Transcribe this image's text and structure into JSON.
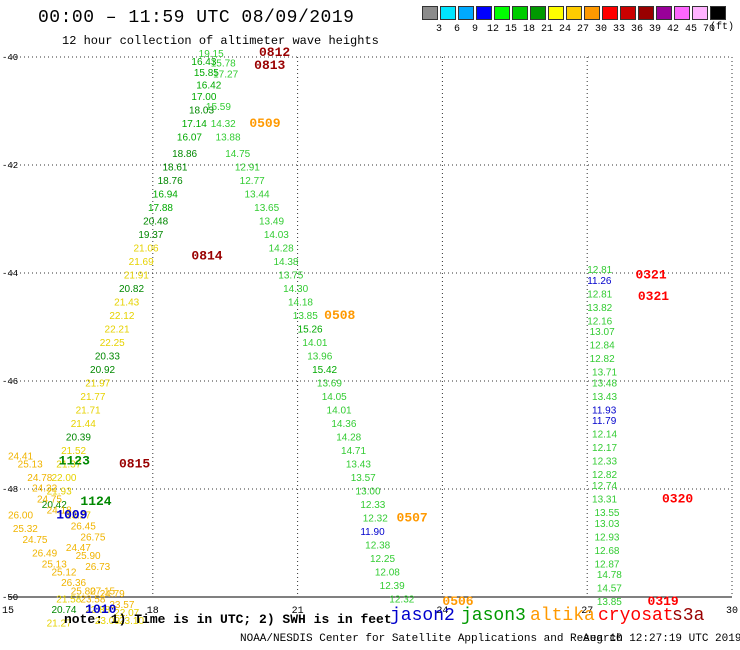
{
  "title": "00:00 – 11:59 UTC 08/09/2019",
  "subtitle": "12 hour collection of altimeter wave heights",
  "scale": {
    "labels": [
      "3",
      "6",
      "9",
      "12",
      "15",
      "18",
      "21",
      "24",
      "27",
      "30",
      "33",
      "36",
      "39",
      "42",
      "45",
      "70"
    ],
    "unit": "(ft)",
    "colors": [
      "#8c8c8c",
      "#00e5ff",
      "#00aaff",
      "#0000ff",
      "#00ff00",
      "#00cc00",
      "#009900",
      "#ffff00",
      "#ffcc00",
      "#ff9900",
      "#ff0000",
      "#cc0000",
      "#990000",
      "#990099",
      "#ff66ff",
      "#ffb3ff",
      "#000000"
    ]
  },
  "note": "note: 1) Time is in UTC; 2) SWH is in feet",
  "satellites": [
    {
      "name": "jason2",
      "color": "#0000cc"
    },
    {
      "name": "jason3",
      "color": "#009900"
    },
    {
      "name": "altika",
      "color": "#ff9900"
    },
    {
      "name": "cryosat",
      "color": "#ff0000"
    },
    {
      "name": "s3a",
      "color": "#990000"
    }
  ],
  "footer": "NOAA/NESDIS Center for Satellite Applications and Research",
  "footer_timestamp": "Aug 10 12:27:19 UTC 2019",
  "colors": {
    "green_dark": "#008800",
    "green_mid": "#00aa00",
    "green_light": "#33cc33",
    "yellow": "#e6d200",
    "gold": "#f0b400",
    "orange": "#ff9900",
    "red": "#ff0000",
    "maroon": "#990000",
    "blue": "#0000cc"
  },
  "chart_data": {
    "type": "scatter",
    "xlabel": "",
    "ylabel": "",
    "xlim": [
      15,
      30
    ],
    "ylim": [
      -50,
      -40
    ],
    "x_ticks": [
      "15",
      "18",
      "21",
      "24",
      "27",
      "30"
    ],
    "y_ticks": [
      "-40",
      "-42",
      "-44",
      "-46",
      "-48",
      "-50"
    ],
    "grid": true,
    "points": [
      {
        "x": 18.95,
        "y": -40.0,
        "label": "19.15",
        "c": "green_light"
      },
      {
        "x": 18.8,
        "y": -40.15,
        "label": "16.43",
        "c": "green_mid"
      },
      {
        "x": 19.2,
        "y": -40.18,
        "label": "15.78",
        "c": "green_light"
      },
      {
        "x": 18.85,
        "y": -40.35,
        "label": "15.85",
        "c": "green_mid"
      },
      {
        "x": 19.25,
        "y": -40.38,
        "label": "17.27",
        "c": "green_light"
      },
      {
        "x": 18.9,
        "y": -40.58,
        "label": "16.42",
        "c": "green_mid"
      },
      {
        "x": 18.8,
        "y": -40.8,
        "label": "17.00",
        "c": "green_mid"
      },
      {
        "x": 19.1,
        "y": -40.98,
        "label": "15.59",
        "c": "green_light"
      },
      {
        "x": 18.75,
        "y": -41.05,
        "label": "18.03",
        "c": "green_dark"
      },
      {
        "x": 18.6,
        "y": -41.3,
        "label": "17.14",
        "c": "green_mid"
      },
      {
        "x": 19.2,
        "y": -41.3,
        "label": "14.32",
        "c": "green_light"
      },
      {
        "x": 18.5,
        "y": -41.55,
        "label": "16.07",
        "c": "green_mid"
      },
      {
        "x": 19.3,
        "y": -41.55,
        "label": "13.88",
        "c": "green_light"
      },
      {
        "x": 18.4,
        "y": -41.85,
        "label": "18.86",
        "c": "green_dark"
      },
      {
        "x": 19.5,
        "y": -41.85,
        "label": "14.75",
        "c": "green_light"
      },
      {
        "x": 18.2,
        "y": -42.1,
        "label": "18.61",
        "c": "green_dark"
      },
      {
        "x": 19.7,
        "y": -42.1,
        "label": "12.91",
        "c": "green_light"
      },
      {
        "x": 18.1,
        "y": -42.35,
        "label": "18.76",
        "c": "green_dark"
      },
      {
        "x": 19.8,
        "y": -42.35,
        "label": "12.77",
        "c": "green_light"
      },
      {
        "x": 18.0,
        "y": -42.6,
        "label": "16.94",
        "c": "green_mid"
      },
      {
        "x": 19.9,
        "y": -42.6,
        "label": "13.44",
        "c": "green_light"
      },
      {
        "x": 17.9,
        "y": -42.85,
        "label": "17.88",
        "c": "green_mid"
      },
      {
        "x": 20.1,
        "y": -42.85,
        "label": "13.65",
        "c": "green_light"
      },
      {
        "x": 17.8,
        "y": -43.1,
        "label": "20.48",
        "c": "green_dark"
      },
      {
        "x": 20.2,
        "y": -43.1,
        "label": "13.49",
        "c": "green_light"
      },
      {
        "x": 17.7,
        "y": -43.35,
        "label": "19.37",
        "c": "green_dark"
      },
      {
        "x": 20.3,
        "y": -43.35,
        "label": "14.03",
        "c": "green_light"
      },
      {
        "x": 17.6,
        "y": -43.6,
        "label": "21.06",
        "c": "yellow"
      },
      {
        "x": 20.4,
        "y": -43.6,
        "label": "14.28",
        "c": "green_light"
      },
      {
        "x": 17.5,
        "y": -43.85,
        "label": "21.69",
        "c": "yellow"
      },
      {
        "x": 20.5,
        "y": -43.85,
        "label": "14.38",
        "c": "green_light"
      },
      {
        "x": 17.4,
        "y": -44.1,
        "label": "21.91",
        "c": "yellow"
      },
      {
        "x": 20.6,
        "y": -44.1,
        "label": "13.75",
        "c": "green_light"
      },
      {
        "x": 17.3,
        "y": -44.35,
        "label": "20.82",
        "c": "green_dark"
      },
      {
        "x": 20.7,
        "y": -44.35,
        "label": "14.30",
        "c": "green_light"
      },
      {
        "x": 17.2,
        "y": -44.6,
        "label": "21.43",
        "c": "yellow"
      },
      {
        "x": 20.8,
        "y": -44.6,
        "label": "14.18",
        "c": "green_light"
      },
      {
        "x": 17.1,
        "y": -44.85,
        "label": "22.12",
        "c": "yellow"
      },
      {
        "x": 20.9,
        "y": -44.85,
        "label": "13.85",
        "c": "green_light"
      },
      {
        "x": 17.0,
        "y": -45.1,
        "label": "22.21",
        "c": "yellow"
      },
      {
        "x": 21.0,
        "y": -45.1,
        "label": "15.26",
        "c": "green_mid"
      },
      {
        "x": 16.9,
        "y": -45.35,
        "label": "22.25",
        "c": "yellow"
      },
      {
        "x": 21.1,
        "y": -45.35,
        "label": "14.01",
        "c": "green_light"
      },
      {
        "x": 16.8,
        "y": -45.6,
        "label": "20.33",
        "c": "green_dark"
      },
      {
        "x": 21.2,
        "y": -45.6,
        "label": "13.96",
        "c": "green_light"
      },
      {
        "x": 16.7,
        "y": -45.85,
        "label": "20.92",
        "c": "green_dark"
      },
      {
        "x": 21.3,
        "y": -45.85,
        "label": "15.42",
        "c": "green_mid"
      },
      {
        "x": 16.6,
        "y": -46.1,
        "label": "21.97",
        "c": "yellow"
      },
      {
        "x": 21.4,
        "y": -46.1,
        "label": "13.69",
        "c": "green_light"
      },
      {
        "x": 16.5,
        "y": -46.35,
        "label": "21.77",
        "c": "yellow"
      },
      {
        "x": 21.5,
        "y": -46.35,
        "label": "14.05",
        "c": "green_light"
      },
      {
        "x": 16.4,
        "y": -46.6,
        "label": "21.71",
        "c": "yellow"
      },
      {
        "x": 21.6,
        "y": -46.6,
        "label": "14.01",
        "c": "green_light"
      },
      {
        "x": 16.3,
        "y": -46.85,
        "label": "21.44",
        "c": "yellow"
      },
      {
        "x": 21.7,
        "y": -46.85,
        "label": "14.36",
        "c": "green_light"
      },
      {
        "x": 16.2,
        "y": -47.1,
        "label": "20.39",
        "c": "green_dark"
      },
      {
        "x": 21.8,
        "y": -47.1,
        "label": "14.28",
        "c": "green_light"
      },
      {
        "x": 16.1,
        "y": -47.35,
        "label": "21.52",
        "c": "yellow"
      },
      {
        "x": 21.9,
        "y": -47.35,
        "label": "14.71",
        "c": "green_light"
      },
      {
        "x": 16.0,
        "y": -47.6,
        "label": "21.37",
        "c": "yellow"
      },
      {
        "x": 22.0,
        "y": -47.6,
        "label": "13.43",
        "c": "green_light"
      },
      {
        "x": 15.9,
        "y": -47.85,
        "label": "22.00",
        "c": "yellow"
      },
      {
        "x": 22.1,
        "y": -47.85,
        "label": "13.57",
        "c": "green_light"
      },
      {
        "x": 15.8,
        "y": -48.1,
        "label": "21.93",
        "c": "yellow"
      },
      {
        "x": 22.2,
        "y": -48.1,
        "label": "13.00",
        "c": "green_light"
      },
      {
        "x": 15.7,
        "y": -48.35,
        "label": "20.42",
        "c": "green_dark"
      },
      {
        "x": 22.3,
        "y": -48.35,
        "label": "12.33",
        "c": "green_light"
      },
      {
        "x": 22.35,
        "y": -48.6,
        "label": "12.32",
        "c": "green_light"
      },
      {
        "x": 22.3,
        "y": -48.85,
        "label": "11.90",
        "c": "blue"
      },
      {
        "x": 22.4,
        "y": -49.1,
        "label": "12.38",
        "c": "green_light"
      },
      {
        "x": 22.5,
        "y": -49.35,
        "label": "12.25",
        "c": "green_light"
      },
      {
        "x": 22.6,
        "y": -49.6,
        "label": "12.08",
        "c": "green_light"
      },
      {
        "x": 22.7,
        "y": -49.85,
        "label": "12.39",
        "c": "green_light"
      },
      {
        "x": 22.9,
        "y": -50.1,
        "label": "12.32",
        "c": "green_light"
      },
      {
        "x": 15.0,
        "y": -47.45,
        "label": "24.41",
        "c": "gold"
      },
      {
        "x": 15.2,
        "y": -47.6,
        "label": "25.13",
        "c": "gold"
      },
      {
        "x": 15.4,
        "y": -47.85,
        "label": "24.78",
        "c": "gold"
      },
      {
        "x": 15.5,
        "y": -48.05,
        "label": "24.32",
        "c": "gold"
      },
      {
        "x": 15.6,
        "y": -48.25,
        "label": "24.75",
        "c": "gold"
      },
      {
        "x": 15.8,
        "y": -48.45,
        "label": "24.18",
        "c": "gold"
      },
      {
        "x": 15.0,
        "y": -48.55,
        "label": "26.00",
        "c": "gold"
      },
      {
        "x": 15.1,
        "y": -48.8,
        "label": "25.32",
        "c": "gold"
      },
      {
        "x": 15.3,
        "y": -49.0,
        "label": "24.75",
        "c": "gold"
      },
      {
        "x": 15.5,
        "y": -49.25,
        "label": "26.49",
        "c": "gold"
      },
      {
        "x": 15.7,
        "y": -49.45,
        "label": "25.13",
        "c": "gold"
      },
      {
        "x": 15.9,
        "y": -49.6,
        "label": "25.12",
        "c": "gold"
      },
      {
        "x": 16.1,
        "y": -49.8,
        "label": "26.36",
        "c": "gold"
      },
      {
        "x": 16.3,
        "y": -49.95,
        "label": "25.80",
        "c": "gold"
      },
      {
        "x": 16.7,
        "y": -49.95,
        "label": "27.15",
        "c": "gold"
      },
      {
        "x": 16.2,
        "y": -48.55,
        "label": "23.27",
        "c": "yellow"
      },
      {
        "x": 16.3,
        "y": -48.75,
        "label": "26.45",
        "c": "gold"
      },
      {
        "x": 16.5,
        "y": -48.95,
        "label": "26.75",
        "c": "gold"
      },
      {
        "x": 16.2,
        "y": -49.15,
        "label": "24.47",
        "c": "gold"
      },
      {
        "x": 16.4,
        "y": -49.3,
        "label": "25.90",
        "c": "gold"
      },
      {
        "x": 16.6,
        "y": -49.5,
        "label": "26.73",
        "c": "gold"
      },
      {
        "x": 16.9,
        "y": -50.0,
        "label": "24.79",
        "c": "gold"
      },
      {
        "x": 16.0,
        "y": -50.1,
        "label": "21.58",
        "c": "yellow"
      },
      {
        "x": 16.5,
        "y": -50.1,
        "label": "23.58",
        "c": "gold"
      },
      {
        "x": 17.1,
        "y": -50.2,
        "label": "23.57",
        "c": "gold"
      },
      {
        "x": 15.9,
        "y": -50.3,
        "label": "20.74",
        "c": "green_dark"
      },
      {
        "x": 16.6,
        "y": -50.3,
        "label": "22.88",
        "c": "yellow"
      },
      {
        "x": 17.2,
        "y": -50.35,
        "label": "22.07",
        "c": "yellow"
      },
      {
        "x": 16.8,
        "y": -50.5,
        "label": "23.09",
        "c": "yellow"
      },
      {
        "x": 17.3,
        "y": -50.5,
        "label": "23.10",
        "c": "yellow"
      },
      {
        "x": 15.8,
        "y": -50.55,
        "label": "21.27",
        "c": "yellow"
      },
      {
        "x": 27.0,
        "y": -44.0,
        "label": "12.81",
        "c": "green_light"
      },
      {
        "x": 27.0,
        "y": -44.2,
        "label": "11.26",
        "c": "blue"
      },
      {
        "x": 27.0,
        "y": -44.45,
        "label": "12.81",
        "c": "green_light"
      },
      {
        "x": 27.0,
        "y": -44.7,
        "label": "13.82",
        "c": "green_light"
      },
      {
        "x": 27.0,
        "y": -44.95,
        "label": "12.16",
        "c": "green_light"
      },
      {
        "x": 27.05,
        "y": -45.15,
        "label": "13.07",
        "c": "green_light"
      },
      {
        "x": 27.05,
        "y": -45.4,
        "label": "12.84",
        "c": "green_light"
      },
      {
        "x": 27.05,
        "y": -45.65,
        "label": "12.82",
        "c": "green_light"
      },
      {
        "x": 27.1,
        "y": -45.9,
        "label": "13.71",
        "c": "green_light"
      },
      {
        "x": 27.1,
        "y": -46.1,
        "label": "13.48",
        "c": "green_light"
      },
      {
        "x": 27.1,
        "y": -46.35,
        "label": "13.43",
        "c": "green_light"
      },
      {
        "x": 27.1,
        "y": -46.6,
        "label": "11.93",
        "c": "blue"
      },
      {
        "x": 27.1,
        "y": -46.8,
        "label": "11.79",
        "c": "blue"
      },
      {
        "x": 27.1,
        "y": -47.05,
        "label": "12.14",
        "c": "green_light"
      },
      {
        "x": 27.1,
        "y": -47.3,
        "label": "12.17",
        "c": "green_light"
      },
      {
        "x": 27.1,
        "y": -47.55,
        "label": "12.33",
        "c": "green_light"
      },
      {
        "x": 27.1,
        "y": -47.8,
        "label": "12.82",
        "c": "green_light"
      },
      {
        "x": 27.1,
        "y": -48.0,
        "label": "12.74",
        "c": "green_light"
      },
      {
        "x": 27.1,
        "y": -48.25,
        "label": "13.31",
        "c": "green_light"
      },
      {
        "x": 27.15,
        "y": -48.5,
        "label": "13.55",
        "c": "green_light"
      },
      {
        "x": 27.15,
        "y": -48.7,
        "label": "13.03",
        "c": "green_light"
      },
      {
        "x": 27.15,
        "y": -48.95,
        "label": "12.93",
        "c": "green_light"
      },
      {
        "x": 27.15,
        "y": -49.2,
        "label": "12.68",
        "c": "green_light"
      },
      {
        "x": 27.15,
        "y": -49.45,
        "label": "12.87",
        "c": "green_light"
      },
      {
        "x": 27.2,
        "y": -49.65,
        "label": "14.78",
        "c": "green_light"
      },
      {
        "x": 27.2,
        "y": -49.9,
        "label": "14.57",
        "c": "green_light"
      },
      {
        "x": 27.2,
        "y": -50.15,
        "label": "13.85",
        "c": "green_light"
      }
    ],
    "time_labels": [
      {
        "x": 20.2,
        "y": -39.98,
        "label": "0812",
        "c": "maroon"
      },
      {
        "x": 20.1,
        "y": -40.22,
        "label": "0813",
        "c": "maroon"
      },
      {
        "x": 20.0,
        "y": -41.3,
        "label": "0509",
        "c": "orange"
      },
      {
        "x": 18.8,
        "y": -43.75,
        "label": "0814",
        "c": "maroon"
      },
      {
        "x": 21.55,
        "y": -44.85,
        "label": "0508",
        "c": "orange"
      },
      {
        "x": 17.3,
        "y": -47.6,
        "label": "0815",
        "c": "maroon"
      },
      {
        "x": 16.05,
        "y": -47.55,
        "label": "1123",
        "c": "green_dark"
      },
      {
        "x": 16.5,
        "y": -48.3,
        "label": "1124",
        "c": "green_dark"
      },
      {
        "x": 16.0,
        "y": -48.55,
        "label": "1009",
        "c": "blue"
      },
      {
        "x": 23.05,
        "y": -48.6,
        "label": "0507",
        "c": "orange"
      },
      {
        "x": 16.6,
        "y": -50.3,
        "label": "1010",
        "c": "blue"
      },
      {
        "x": 24.0,
        "y": -50.15,
        "label": "0506",
        "c": "orange"
      },
      {
        "x": 28.0,
        "y": -44.1,
        "label": "0321",
        "c": "red"
      },
      {
        "x": 28.05,
        "y": -44.5,
        "label": "0321",
        "c": "red"
      },
      {
        "x": 28.55,
        "y": -48.25,
        "label": "0320",
        "c": "red"
      },
      {
        "x": 28.25,
        "y": -50.15,
        "label": "0319",
        "c": "red"
      }
    ]
  }
}
